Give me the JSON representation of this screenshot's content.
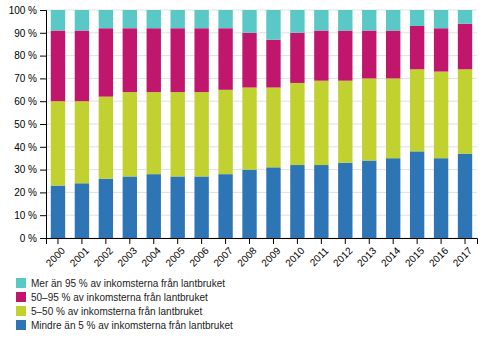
{
  "chart_data": {
    "type": "bar",
    "stacked": true,
    "categories": [
      "2000",
      "2001",
      "2002",
      "2003",
      "2004",
      "2005",
      "2006",
      "2007",
      "2008",
      "2009",
      "2010",
      "2011",
      "2012",
      "2013",
      "2014",
      "2015",
      "2016",
      "2017"
    ],
    "series": [
      {
        "name": "Mindre än 5 % av inkomsterna från lantbruket",
        "color": "#2e75b6",
        "values": [
          23,
          24,
          26,
          27,
          28,
          27,
          27,
          28,
          30,
          31,
          32,
          32,
          33,
          34,
          35,
          38,
          35,
          37
        ]
      },
      {
        "name": "5–50 % av inkomsterna från lantbruket",
        "color": "#c0d130",
        "values": [
          37,
          36,
          36,
          37,
          36,
          37,
          37,
          37,
          36,
          35,
          36,
          37,
          36,
          36,
          35,
          36,
          38,
          37
        ]
      },
      {
        "name": "50–95 % av inkomsterna från lantbruket",
        "color": "#c0176c",
        "values": [
          31,
          31,
          30,
          28,
          28,
          28,
          28,
          27,
          24,
          21,
          22,
          22,
          22,
          21,
          21,
          19,
          19,
          20
        ]
      },
      {
        "name": "Mer än 95 % av inkomsterna från lantbruket",
        "color": "#5bc8c8",
        "values": [
          9,
          9,
          8,
          8,
          8,
          8,
          8,
          8,
          10,
          13,
          10,
          9,
          9,
          9,
          9,
          7,
          8,
          6
        ]
      }
    ],
    "ylim": [
      0,
      100
    ],
    "yticks": [
      {
        "value": 0,
        "label": "0 %"
      },
      {
        "value": 10,
        "label": "10 %"
      },
      {
        "value": 20,
        "label": "20 %"
      },
      {
        "value": 30,
        "label": "30 %"
      },
      {
        "value": 40,
        "label": "40 %"
      },
      {
        "value": 50,
        "label": "50 %"
      },
      {
        "value": 60,
        "label": "60 %"
      },
      {
        "value": 70,
        "label": "70 %"
      },
      {
        "value": 80,
        "label": "80 %"
      },
      {
        "value": 90,
        "label": "90 %"
      },
      {
        "value": 100,
        "label": "100 %"
      }
    ],
    "grid": true,
    "legend": "bottom"
  }
}
